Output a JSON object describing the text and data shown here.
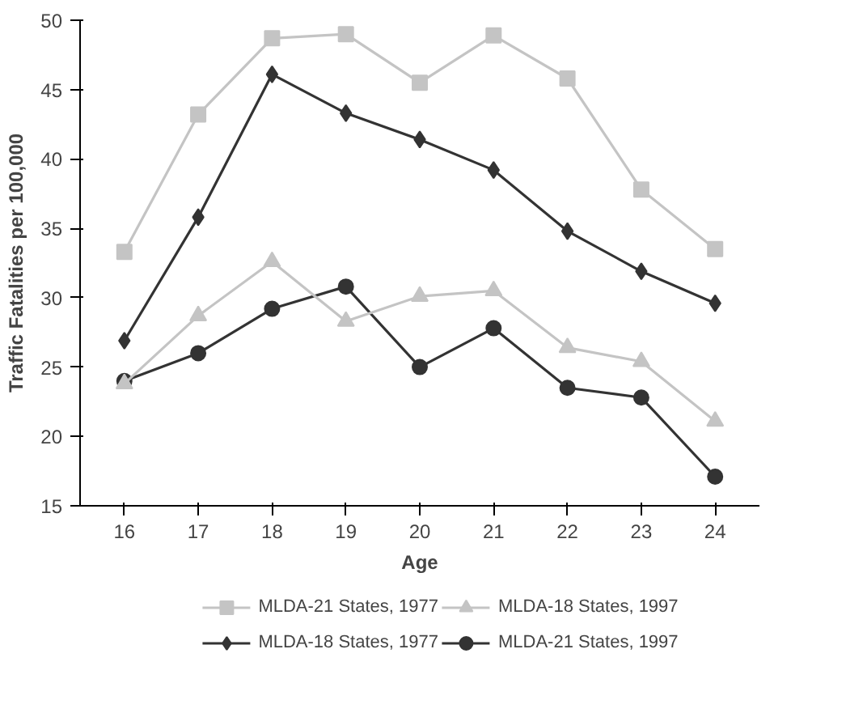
{
  "chart_data": {
    "type": "line",
    "xlabel": "Age",
    "ylabel": "Traffic Fatalities per 100,000",
    "categories": [
      "16",
      "17",
      "18",
      "19",
      "20",
      "21",
      "22",
      "23",
      "24"
    ],
    "series": [
      {
        "name": "MLDA-21 States, 1977",
        "color": "#c4c4c4",
        "marker": "square",
        "values": [
          33.3,
          43.2,
          48.7,
          49.0,
          45.5,
          48.9,
          45.8,
          37.8,
          33.5
        ]
      },
      {
        "name": "MLDA-18 States, 1977",
        "color": "#333333",
        "marker": "diamond",
        "values": [
          26.9,
          35.8,
          46.1,
          43.3,
          41.4,
          39.2,
          34.8,
          31.9,
          29.6
        ]
      },
      {
        "name": "MLDA-18 States, 1997",
        "color": "#c4c4c4",
        "marker": "triangle",
        "values": [
          23.8,
          28.7,
          32.6,
          28.3,
          30.1,
          30.5,
          26.4,
          25.4,
          21.1
        ]
      },
      {
        "name": "MLDA-21 States, 1997",
        "color": "#333333",
        "marker": "circle",
        "values": [
          24.0,
          26.0,
          29.2,
          30.8,
          25.0,
          27.8,
          23.5,
          22.8,
          17.1
        ]
      }
    ],
    "ylim": [
      15,
      50
    ],
    "yticks": [
      15,
      20,
      25,
      30,
      35,
      40,
      45,
      50
    ],
    "grid": false,
    "legend": "bottom"
  }
}
